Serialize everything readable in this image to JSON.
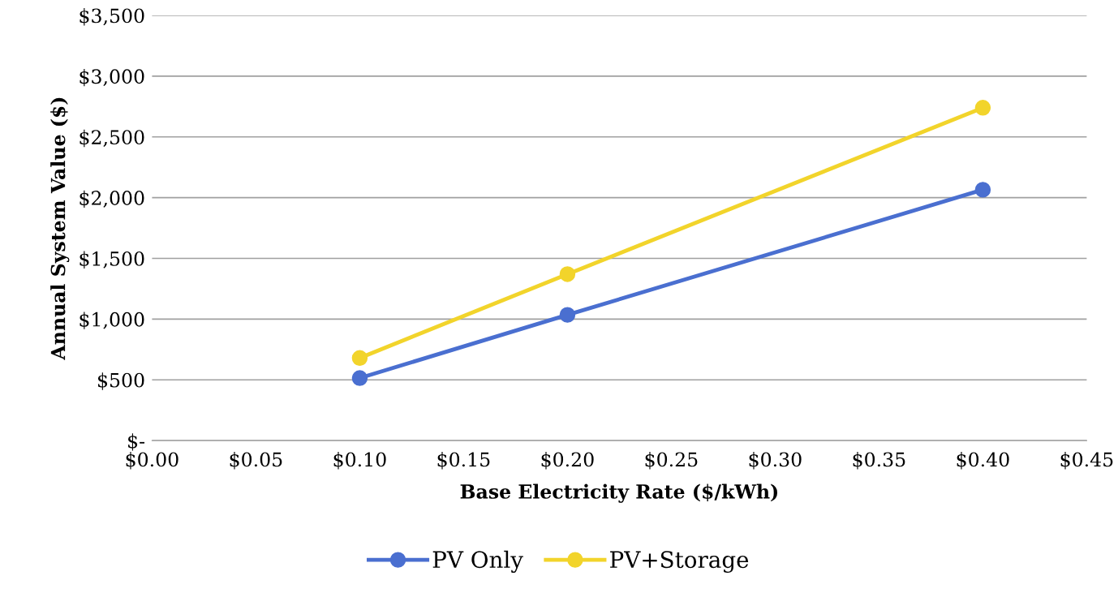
{
  "chart_data": {
    "type": "line",
    "xlabel": "Base Electricity Rate ($/kWh)",
    "ylabel": "Annual System Value ($)",
    "x": [
      0.1,
      0.2,
      0.4
    ],
    "series": [
      {
        "name": "PV Only",
        "color": "#4a6fd0",
        "values": [
          515,
          1035,
          2065
        ]
      },
      {
        "name": "PV+Storage",
        "color": "#f2d42b",
        "values": [
          680,
          1370,
          2740
        ]
      }
    ],
    "xlim": [
      0,
      0.45
    ],
    "xticks": [
      {
        "value": 0,
        "label": "$0.00"
      },
      {
        "value": 0.05,
        "label": "$0.05"
      },
      {
        "value": 0.1,
        "label": "$0.10"
      },
      {
        "value": 0.15,
        "label": "$0.15"
      },
      {
        "value": 0.2,
        "label": "$0.20"
      },
      {
        "value": 0.25,
        "label": "$0.25"
      },
      {
        "value": 0.3,
        "label": "$0.30"
      },
      {
        "value": 0.35,
        "label": "$0.35"
      },
      {
        "value": 0.4,
        "label": "$0.40"
      },
      {
        "value": 0.45,
        "label": "$0.45"
      }
    ],
    "ylim": [
      0,
      3500
    ],
    "yticks": [
      {
        "value": 0,
        "label": "$-"
      },
      {
        "value": 500,
        "label": "$500"
      },
      {
        "value": 1000,
        "label": "$1,000"
      },
      {
        "value": 1500,
        "label": "$1,500"
      },
      {
        "value": 2000,
        "label": "$2,000"
      },
      {
        "value": 2500,
        "label": "$2,500"
      },
      {
        "value": 3000,
        "label": "$3,000"
      },
      {
        "value": 3500,
        "label": "$3,500"
      }
    ],
    "grid": "y",
    "legend": "bottom",
    "marker": "circle",
    "line_style": "solid"
  }
}
